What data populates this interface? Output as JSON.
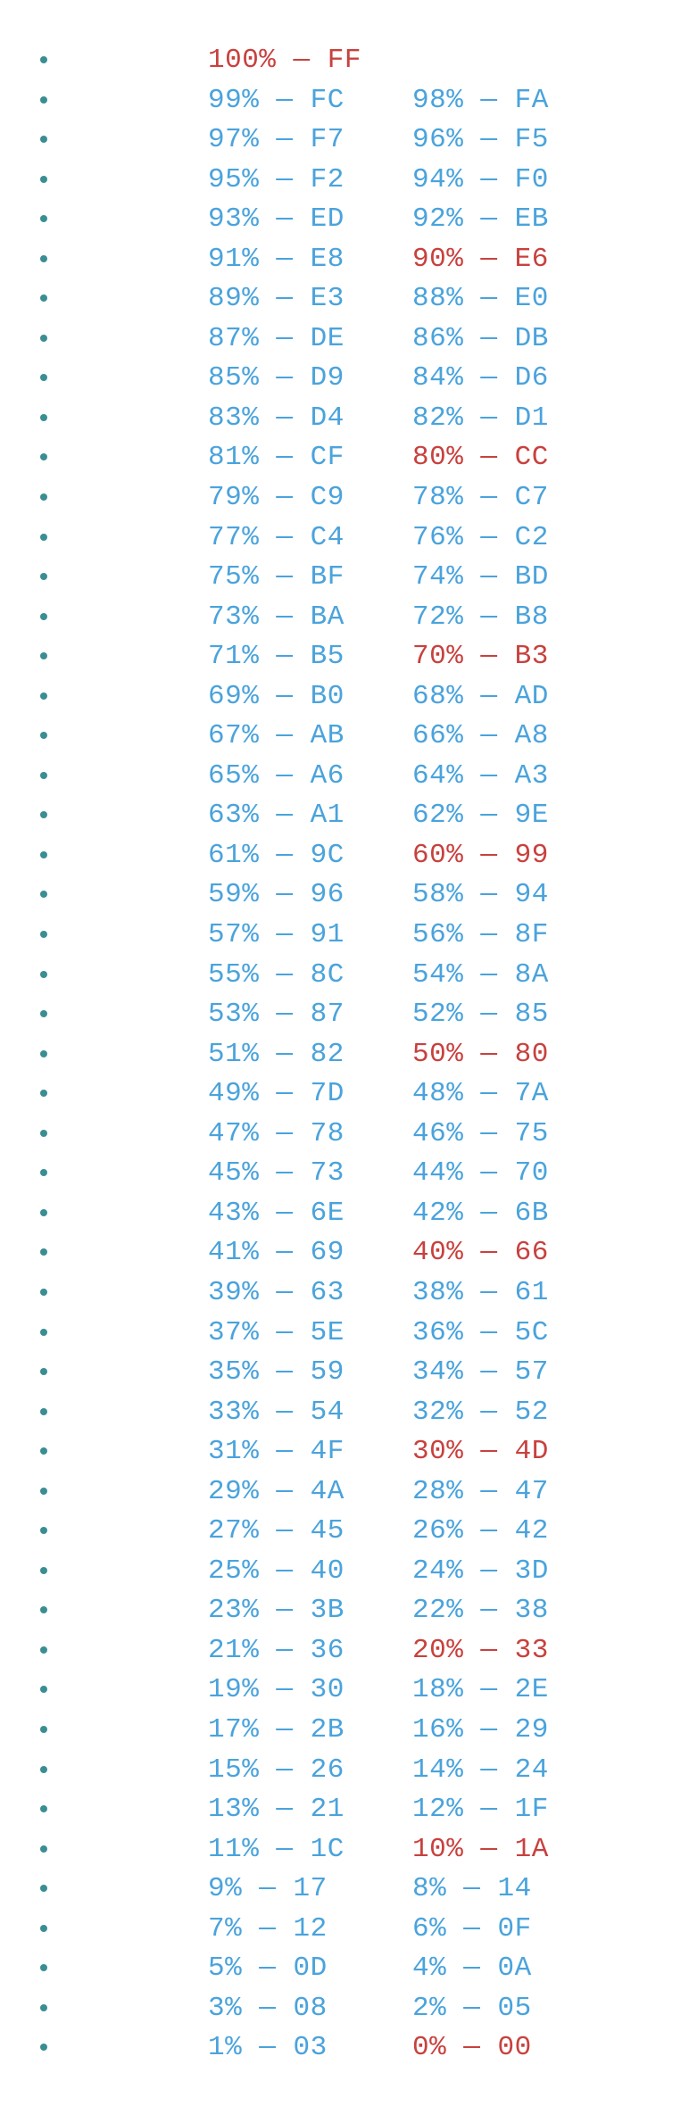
{
  "colors": {
    "normal_text": "#4aa3dc",
    "highlight_text": "#c8413e",
    "bullet": "#3a8e93"
  },
  "rows": [
    [
      {
        "text": "100% — FF",
        "mark": true
      }
    ],
    [
      {
        "text": "99% — FC",
        "mark": false
      },
      {
        "text": "98% — FA",
        "mark": false
      }
    ],
    [
      {
        "text": "97% — F7",
        "mark": false
      },
      {
        "text": "96% — F5",
        "mark": false
      }
    ],
    [
      {
        "text": "95% — F2",
        "mark": false
      },
      {
        "text": "94% — F0",
        "mark": false
      }
    ],
    [
      {
        "text": "93% — ED",
        "mark": false
      },
      {
        "text": "92% — EB",
        "mark": false
      }
    ],
    [
      {
        "text": "91% — E8",
        "mark": false
      },
      {
        "text": "90% — E6",
        "mark": true
      }
    ],
    [
      {
        "text": "89% — E3",
        "mark": false
      },
      {
        "text": "88% — E0",
        "mark": false
      }
    ],
    [
      {
        "text": "87% — DE",
        "mark": false
      },
      {
        "text": "86% — DB",
        "mark": false
      }
    ],
    [
      {
        "text": "85% — D9",
        "mark": false
      },
      {
        "text": "84% — D6",
        "mark": false
      }
    ],
    [
      {
        "text": "83% — D4",
        "mark": false
      },
      {
        "text": "82% — D1",
        "mark": false
      }
    ],
    [
      {
        "text": "81% — CF",
        "mark": false
      },
      {
        "text": "80% — CC",
        "mark": true
      }
    ],
    [
      {
        "text": "79% — C9",
        "mark": false
      },
      {
        "text": "78% — C7",
        "mark": false
      }
    ],
    [
      {
        "text": "77% — C4",
        "mark": false
      },
      {
        "text": "76% — C2",
        "mark": false
      }
    ],
    [
      {
        "text": "75% — BF",
        "mark": false
      },
      {
        "text": "74% — BD",
        "mark": false
      }
    ],
    [
      {
        "text": "73% — BA",
        "mark": false
      },
      {
        "text": "72% — B8",
        "mark": false
      }
    ],
    [
      {
        "text": "71% — B5",
        "mark": false
      },
      {
        "text": "70% — B3",
        "mark": true
      }
    ],
    [
      {
        "text": "69% — B0",
        "mark": false
      },
      {
        "text": "68% — AD",
        "mark": false
      }
    ],
    [
      {
        "text": "67% — AB",
        "mark": false
      },
      {
        "text": "66% — A8",
        "mark": false
      }
    ],
    [
      {
        "text": "65% — A6",
        "mark": false
      },
      {
        "text": "64% — A3",
        "mark": false
      }
    ],
    [
      {
        "text": "63% — A1",
        "mark": false
      },
      {
        "text": "62% — 9E",
        "mark": false
      }
    ],
    [
      {
        "text": "61% — 9C",
        "mark": false
      },
      {
        "text": "60% — 99",
        "mark": true
      }
    ],
    [
      {
        "text": "59% — 96",
        "mark": false
      },
      {
        "text": "58% — 94",
        "mark": false
      }
    ],
    [
      {
        "text": "57% — 91",
        "mark": false
      },
      {
        "text": "56% — 8F",
        "mark": false
      }
    ],
    [
      {
        "text": "55% — 8C",
        "mark": false
      },
      {
        "text": "54% — 8A",
        "mark": false
      }
    ],
    [
      {
        "text": "53% — 87",
        "mark": false
      },
      {
        "text": "52% — 85",
        "mark": false
      }
    ],
    [
      {
        "text": "51% — 82",
        "mark": false
      },
      {
        "text": "50% — 80",
        "mark": true
      }
    ],
    [
      {
        "text": "49% — 7D",
        "mark": false
      },
      {
        "text": "48% — 7A",
        "mark": false
      }
    ],
    [
      {
        "text": "47% — 78",
        "mark": false
      },
      {
        "text": "46% — 75",
        "mark": false
      }
    ],
    [
      {
        "text": "45% — 73",
        "mark": false
      },
      {
        "text": "44% — 70",
        "mark": false
      }
    ],
    [
      {
        "text": "43% — 6E",
        "mark": false
      },
      {
        "text": "42% — 6B",
        "mark": false
      }
    ],
    [
      {
        "text": "41% — 69",
        "mark": false
      },
      {
        "text": "40% — 66",
        "mark": true
      }
    ],
    [
      {
        "text": "39% — 63",
        "mark": false
      },
      {
        "text": "38% — 61",
        "mark": false
      }
    ],
    [
      {
        "text": "37% — 5E",
        "mark": false
      },
      {
        "text": "36% — 5C",
        "mark": false
      }
    ],
    [
      {
        "text": "35% — 59",
        "mark": false
      },
      {
        "text": "34% — 57",
        "mark": false
      }
    ],
    [
      {
        "text": "33% — 54",
        "mark": false
      },
      {
        "text": "32% — 52",
        "mark": false
      }
    ],
    [
      {
        "text": "31% — 4F",
        "mark": false
      },
      {
        "text": "30% — 4D",
        "mark": true
      }
    ],
    [
      {
        "text": "29% — 4A",
        "mark": false
      },
      {
        "text": "28% — 47",
        "mark": false
      }
    ],
    [
      {
        "text": "27% — 45",
        "mark": false
      },
      {
        "text": "26% — 42",
        "mark": false
      }
    ],
    [
      {
        "text": "25% — 40",
        "mark": false
      },
      {
        "text": "24% — 3D",
        "mark": false
      }
    ],
    [
      {
        "text": "23% — 3B",
        "mark": false
      },
      {
        "text": "22% — 38",
        "mark": false
      }
    ],
    [
      {
        "text": "21% — 36",
        "mark": false
      },
      {
        "text": "20% — 33",
        "mark": true
      }
    ],
    [
      {
        "text": "19% — 30",
        "mark": false
      },
      {
        "text": "18% — 2E",
        "mark": false
      }
    ],
    [
      {
        "text": "17% — 2B",
        "mark": false
      },
      {
        "text": "16% — 29",
        "mark": false
      }
    ],
    [
      {
        "text": "15% — 26",
        "mark": false
      },
      {
        "text": "14% — 24",
        "mark": false
      }
    ],
    [
      {
        "text": "13% — 21",
        "mark": false
      },
      {
        "text": "12% — 1F",
        "mark": false
      }
    ],
    [
      {
        "text": "11% — 1C",
        "mark": false
      },
      {
        "text": "10% — 1A",
        "mark": true
      }
    ],
    [
      {
        "text": "9% — 17",
        "mark": false
      },
      {
        "text": "8% — 14",
        "mark": false
      }
    ],
    [
      {
        "text": "7% — 12",
        "mark": false
      },
      {
        "text": "6% — 0F",
        "mark": false
      }
    ],
    [
      {
        "text": "5% — 0D",
        "mark": false
      },
      {
        "text": "4% — 0A",
        "mark": false
      }
    ],
    [
      {
        "text": "3% — 08",
        "mark": false
      },
      {
        "text": "2% — 05",
        "mark": false
      }
    ],
    [
      {
        "text": "1% — 03",
        "mark": false
      },
      {
        "text": "0% — 00",
        "mark": true
      }
    ]
  ]
}
